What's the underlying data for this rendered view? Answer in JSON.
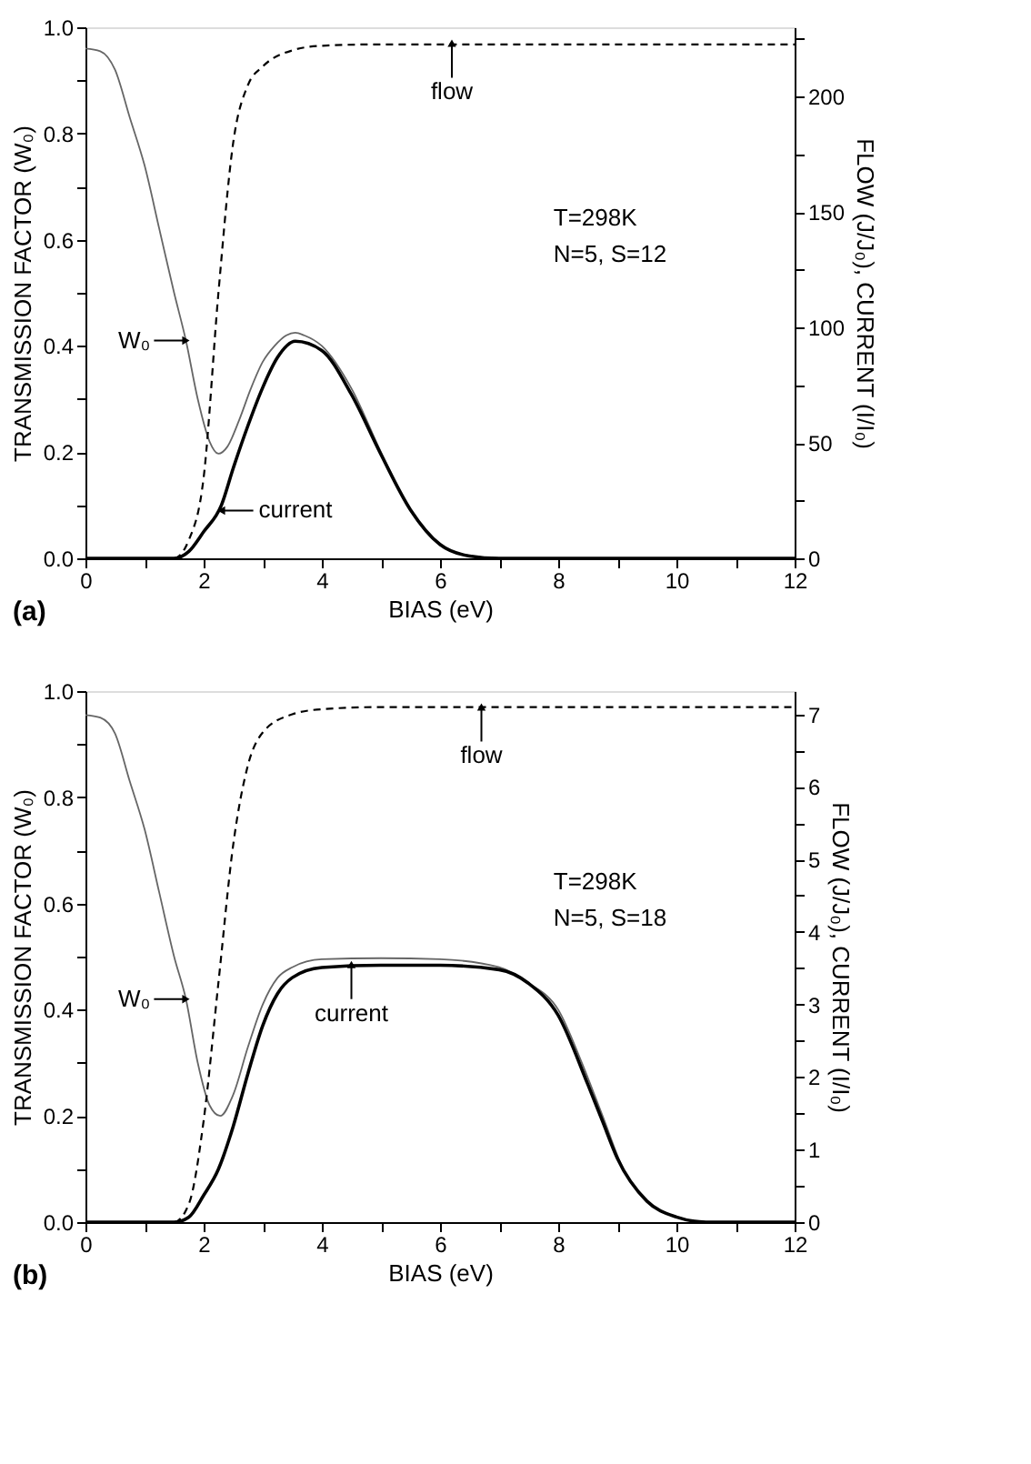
{
  "chart_data": [
    {
      "type": "line",
      "xlabel": "BIAS (eV)",
      "ylabel": "TRANSMISSION FACTOR (W₀)",
      "y2label": "FLOW (J/J₀), CURRENT (I/I₀)",
      "xlim": [
        0,
        12
      ],
      "xticks": [
        0,
        {
          "value": 1,
          "label": null
        },
        2,
        {
          "value": 3,
          "label": null
        },
        4,
        {
          "value": 5,
          "label": null
        },
        6,
        {
          "value": 7,
          "label": null
        },
        8,
        {
          "value": 9,
          "label": null
        },
        10,
        {
          "value": 11,
          "label": null
        },
        12
      ],
      "ylim": [
        0,
        1
      ],
      "yticks": [
        {
          "value": 0,
          "label": "0.0"
        },
        {
          "value": 0.1,
          "label": null
        },
        0.2,
        {
          "value": 0.3,
          "label": null
        },
        0.4,
        {
          "value": 0.5,
          "label": null
        },
        0.6,
        {
          "value": 0.7,
          "label": null
        },
        0.8,
        {
          "value": 0.9,
          "label": null
        },
        {
          "value": 1,
          "label": "1.0"
        }
      ],
      "y2lim": [
        0,
        230
      ],
      "y2ticks": [
        0,
        {
          "value": 25,
          "label": null
        },
        50,
        {
          "value": 75,
          "label": null
        },
        100,
        {
          "value": 125,
          "label": null
        },
        150,
        {
          "value": 175,
          "label": null
        },
        200,
        {
          "value": 225,
          "label": null
        }
      ],
      "series": [
        {
          "color": "#666666",
          "line_style": "solid",
          "x": [
            0,
            0.25,
            0.5,
            0.75,
            1,
            1.25,
            1.5,
            1.7,
            1.9,
            2.1,
            2.25,
            2.4,
            2.6,
            2.8,
            3,
            3.2,
            3.4,
            3.55,
            3.7,
            4,
            4.5,
            5,
            5.5,
            6,
            6.5,
            7,
            8,
            12
          ],
          "values": [
            0.96,
            0.955,
            0.92,
            0.83,
            0.74,
            0.62,
            0.5,
            0.41,
            0.3,
            0.22,
            0.197,
            0.21,
            0.26,
            0.32,
            0.37,
            0.4,
            0.42,
            0.425,
            0.42,
            0.4,
            0.32,
            0.2,
            0.09,
            0.025,
            0.005,
            0,
            0,
            0
          ]
        },
        {
          "color": "#000000",
          "line_style": "dashed",
          "axis": "y2",
          "x": [
            0,
            1.5,
            1.75,
            2,
            2.25,
            2.5,
            2.75,
            3,
            3.5,
            4,
            5,
            12
          ],
          "values": [
            0,
            0,
            8,
            35,
            115,
            180,
            205,
            213,
            220,
            222,
            222.6,
            222.6
          ]
        },
        {
          "color": "#000000",
          "line_style": "solid",
          "axis": "y2",
          "x": [
            0,
            1.5,
            1.75,
            2,
            2.3,
            2.5,
            2.75,
            3,
            3.25,
            3.55,
            4,
            4.5,
            5,
            5.5,
            6,
            6.5,
            7,
            12
          ],
          "values": [
            0,
            0,
            3,
            11.5,
            23,
            39,
            57.5,
            74,
            87,
            94,
            90,
            71,
            45,
            21,
            6,
            1,
            0,
            0
          ]
        }
      ],
      "annotations": [
        {
          "text": "flow",
          "x": 6.2,
          "y": 0.97
        },
        {
          "text": "W₀",
          "x": 1.7,
          "y": 0.41
        },
        {
          "text": "current",
          "x": 2.3,
          "y": 0.09
        },
        "T=298K",
        "N=5, S=12",
        "(a)"
      ]
    },
    {
      "type": "line",
      "xlabel": "BIAS (eV)",
      "ylabel": "TRANSMISSION FACTOR (W₀)",
      "y2label": "FLOW (J/J₀), CURRENT (I/I₀)",
      "xlim": [
        0,
        12
      ],
      "xticks": [
        0,
        {
          "value": 1,
          "label": null
        },
        2,
        {
          "value": 3,
          "label": null
        },
        4,
        {
          "value": 5,
          "label": null
        },
        6,
        {
          "value": 7,
          "label": null
        },
        8,
        {
          "value": 9,
          "label": null
        },
        10,
        {
          "value": 11,
          "label": null
        },
        12
      ],
      "ylim": [
        0,
        1
      ],
      "yticks": [
        {
          "value": 0,
          "label": "0.0"
        },
        {
          "value": 0.1,
          "label": null
        },
        0.2,
        {
          "value": 0.3,
          "label": null
        },
        0.4,
        {
          "value": 0.5,
          "label": null
        },
        0.6,
        {
          "value": 0.7,
          "label": null
        },
        0.8,
        {
          "value": 0.9,
          "label": null
        },
        {
          "value": 1,
          "label": "1.0"
        }
      ],
      "y2lim": [
        0,
        7.32
      ],
      "y2ticks": [
        0,
        {
          "value": 0.5,
          "label": null
        },
        1,
        {
          "value": 1.5,
          "label": null
        },
        2,
        {
          "value": 2.5,
          "label": null
        },
        3,
        {
          "value": 3.5,
          "label": null
        },
        4,
        {
          "value": 4.5,
          "label": null
        },
        5,
        {
          "value": 5.5,
          "label": null
        },
        6,
        {
          "value": 6.5,
          "label": null
        },
        7
      ],
      "series": [
        {
          "color": "#666666",
          "line_style": "solid",
          "x": [
            0,
            0.25,
            0.5,
            0.75,
            1,
            1.25,
            1.5,
            1.7,
            1.9,
            2.1,
            2.28,
            2.5,
            2.75,
            3,
            3.25,
            3.5,
            4,
            5,
            6,
            7,
            7.5,
            8,
            8.4,
            8.75,
            9.1,
            9.5,
            10,
            10.5,
            12
          ],
          "values": [
            0.955,
            0.95,
            0.92,
            0.83,
            0.74,
            0.62,
            0.5,
            0.42,
            0.3,
            0.22,
            0.2,
            0.24,
            0.33,
            0.41,
            0.46,
            0.48,
            0.495,
            0.497,
            0.495,
            0.48,
            0.45,
            0.4,
            0.3,
            0.2,
            0.1,
            0.04,
            0.01,
            0,
            0
          ]
        },
        {
          "color": "#000000",
          "line_style": "dashed",
          "axis": "y2",
          "x": [
            0,
            1.5,
            1.75,
            2,
            2.25,
            2.5,
            2.75,
            3,
            3.5,
            4,
            5,
            12
          ],
          "values": [
            0,
            0,
            0.25,
            1.4,
            3.3,
            5.2,
            6.3,
            6.75,
            7,
            7.07,
            7.1,
            7.1
          ]
        },
        {
          "color": "#000000",
          "line_style": "solid",
          "axis": "y2",
          "x": [
            0,
            1.5,
            1.75,
            2,
            2.25,
            2.5,
            2.75,
            3,
            3.25,
            3.5,
            4,
            5,
            6,
            7,
            7.5,
            8,
            8.5,
            8.75,
            9,
            9.5,
            10,
            10.5,
            12
          ],
          "values": [
            0,
            0,
            0.07,
            0.37,
            0.73,
            1.32,
            2.05,
            2.71,
            3.15,
            3.37,
            3.51,
            3.54,
            3.54,
            3.48,
            3.29,
            2.85,
            1.9,
            1.39,
            0.88,
            0.29,
            0.07,
            0,
            0
          ]
        }
      ],
      "annotations": [
        {
          "text": "flow",
          "x": 6.7,
          "y": 0.97
        },
        {
          "text": "W₀",
          "x": 1.7,
          "y": 0.42
        },
        {
          "text": "current",
          "x": 4.5,
          "y": 0.485
        },
        "T=298K",
        "N=5, S=18",
        "(b)"
      ]
    }
  ]
}
